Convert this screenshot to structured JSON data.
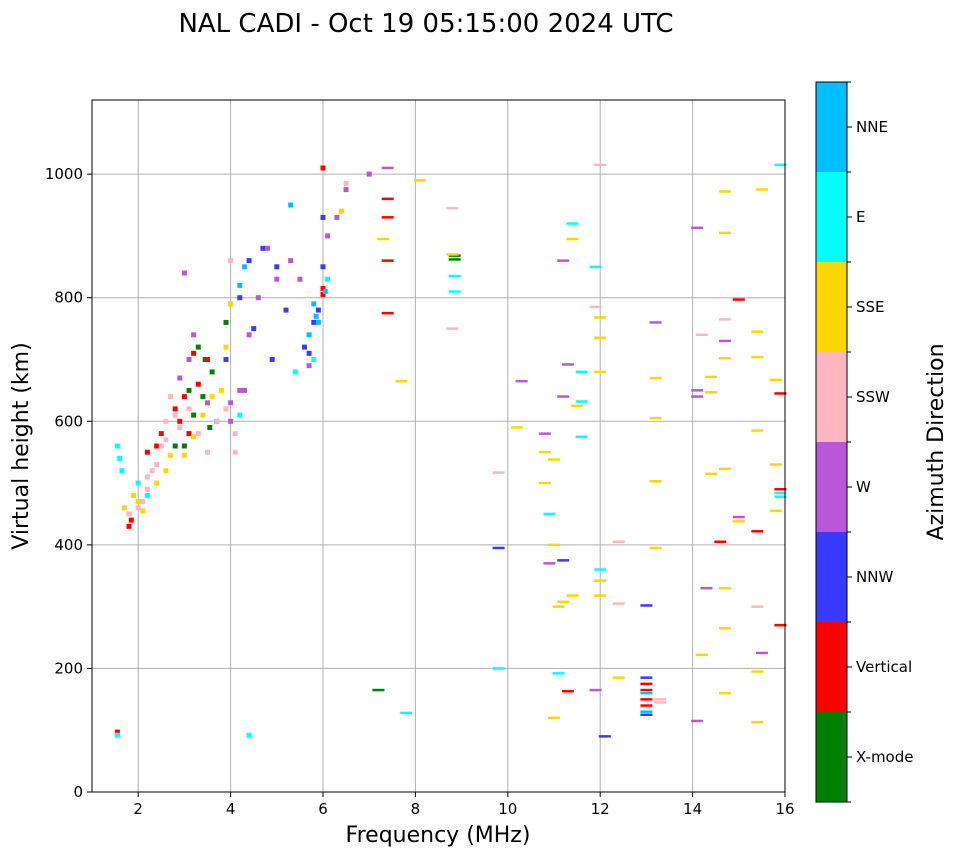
{
  "chart_data": {
    "type": "scatter",
    "title": "NAL CADI - Oct 19 05:15:00 2024 UTC",
    "xlabel": "Frequency (MHz)",
    "ylabel": "Virtual height (km)",
    "xlim": [
      1,
      16
    ],
    "ylim": [
      0,
      1120
    ],
    "xticks": [
      2,
      4,
      6,
      8,
      10,
      12,
      14,
      16
    ],
    "yticks": [
      0,
      200,
      400,
      600,
      800,
      1000
    ],
    "grid": true,
    "colorbar": {
      "label": "Azimuth Direction",
      "categories": [
        "X-mode",
        "Vertical",
        "NNW",
        "W",
        "SSW",
        "SSE",
        "E",
        "NNE"
      ],
      "colors": [
        "#008000",
        "#ff0000",
        "#3a3aff",
        "#b957d8",
        "#ffb6c1",
        "#ffd700",
        "#00ffff",
        "#00bfff"
      ]
    },
    "series": [
      {
        "name": "X-mode",
        "points": [
          [
            3.45,
            700
          ],
          [
            3.1,
            650
          ],
          [
            3.6,
            680
          ],
          [
            3.9,
            760
          ],
          [
            3.3,
            720
          ],
          [
            3.7,
            600
          ],
          [
            3.0,
            560
          ],
          [
            2.8,
            560
          ],
          [
            3.4,
            640
          ],
          [
            7.2,
            165
          ],
          [
            8.85,
            868
          ],
          [
            8.85,
            862
          ],
          [
            3.55,
            590
          ],
          [
            3.2,
            610
          ]
        ]
      },
      {
        "name": "Vertical",
        "points": [
          [
            1.55,
            97
          ],
          [
            1.8,
            430
          ],
          [
            1.85,
            440
          ],
          [
            2.2,
            550
          ],
          [
            2.4,
            560
          ],
          [
            2.5,
            580
          ],
          [
            2.8,
            620
          ],
          [
            3.0,
            640
          ],
          [
            3.2,
            710
          ],
          [
            3.3,
            660
          ],
          [
            3.5,
            700
          ],
          [
            6.0,
            815
          ],
          [
            6.0,
            805
          ],
          [
            6.0,
            1010
          ],
          [
            7.4,
            960
          ],
          [
            7.4,
            930
          ],
          [
            7.4,
            860
          ],
          [
            7.4,
            775
          ],
          [
            13.0,
            175
          ],
          [
            13.0,
            165
          ],
          [
            13.0,
            150
          ],
          [
            13.0,
            140
          ],
          [
            14.6,
            405
          ],
          [
            15.4,
            422
          ],
          [
            15.9,
            490
          ],
          [
            15.9,
            645
          ],
          [
            15.9,
            270
          ],
          [
            15.0,
            797
          ],
          [
            11.3,
            163
          ],
          [
            3.1,
            580
          ],
          [
            2.9,
            600
          ]
        ]
      },
      {
        "name": "NNW",
        "points": [
          [
            4.4,
            860
          ],
          [
            4.5,
            750
          ],
          [
            5.0,
            850
          ],
          [
            5.2,
            780
          ],
          [
            5.6,
            720
          ],
          [
            5.7,
            710
          ],
          [
            5.8,
            760
          ],
          [
            5.9,
            780
          ],
          [
            6.0,
            850
          ],
          [
            6.0,
            930
          ],
          [
            9.8,
            395
          ],
          [
            11.2,
            375
          ],
          [
            12.1,
            90
          ],
          [
            13.0,
            302
          ],
          [
            13.0,
            125
          ],
          [
            13.0,
            185
          ],
          [
            4.2,
            800
          ],
          [
            4.7,
            880
          ],
          [
            3.9,
            700
          ],
          [
            4.9,
            700
          ]
        ]
      },
      {
        "name": "W",
        "points": [
          [
            3.0,
            840
          ],
          [
            4.0,
            790
          ],
          [
            4.2,
            650
          ],
          [
            4.4,
            740
          ],
          [
            4.3,
            650
          ],
          [
            4.6,
            800
          ],
          [
            4.8,
            880
          ],
          [
            5.0,
            830
          ],
          [
            5.3,
            860
          ],
          [
            5.5,
            830
          ],
          [
            5.7,
            690
          ],
          [
            6.1,
            900
          ],
          [
            6.3,
            930
          ],
          [
            6.5,
            975
          ],
          [
            7.0,
            1000
          ],
          [
            7.4,
            1010
          ],
          [
            10.3,
            665
          ],
          [
            10.8,
            580
          ],
          [
            10.9,
            370
          ],
          [
            11.2,
            640
          ],
          [
            11.3,
            692
          ],
          [
            11.9,
            165
          ],
          [
            11.2,
            860
          ],
          [
            13.2,
            760
          ],
          [
            14.1,
            913
          ],
          [
            14.1,
            650
          ],
          [
            14.1,
            640
          ],
          [
            14.1,
            115
          ],
          [
            14.3,
            330
          ],
          [
            14.7,
            730
          ],
          [
            15.0,
            445
          ],
          [
            15.5,
            225
          ],
          [
            2.9,
            670
          ],
          [
            3.1,
            700
          ],
          [
            3.2,
            740
          ],
          [
            3.5,
            630
          ],
          [
            4.0,
            630
          ],
          [
            4.0,
            600
          ]
        ]
      },
      {
        "name": "SSW",
        "points": [
          [
            1.8,
            450
          ],
          [
            2.0,
            460
          ],
          [
            2.2,
            490
          ],
          [
            2.3,
            520
          ],
          [
            2.5,
            560
          ],
          [
            2.6,
            600
          ],
          [
            2.7,
            640
          ],
          [
            2.8,
            610
          ],
          [
            2.9,
            590
          ],
          [
            3.1,
            620
          ],
          [
            3.3,
            580
          ],
          [
            3.5,
            550
          ],
          [
            3.7,
            600
          ],
          [
            3.9,
            620
          ],
          [
            4.1,
            550
          ],
          [
            4.1,
            580
          ],
          [
            8.8,
            945
          ],
          [
            8.8,
            750
          ],
          [
            9.8,
            517
          ],
          [
            12.4,
            405
          ],
          [
            12.4,
            305
          ],
          [
            13.3,
            145
          ],
          [
            13.3,
            150
          ],
          [
            14.2,
            740
          ],
          [
            14.7,
            765
          ],
          [
            15.4,
            300
          ],
          [
            11.9,
            785
          ],
          [
            12.0,
            1015
          ],
          [
            6.5,
            985
          ],
          [
            4.0,
            860
          ],
          [
            2.1,
            470
          ],
          [
            2.4,
            530
          ],
          [
            2.6,
            570
          ],
          [
            2.2,
            510
          ]
        ]
      },
      {
        "name": "SSE",
        "points": [
          [
            1.7,
            460
          ],
          [
            1.9,
            480
          ],
          [
            2.0,
            470
          ],
          [
            2.1,
            455
          ],
          [
            2.4,
            500
          ],
          [
            2.6,
            520
          ],
          [
            2.7,
            545
          ],
          [
            3.0,
            545
          ],
          [
            3.2,
            575
          ],
          [
            3.4,
            610
          ],
          [
            3.6,
            640
          ],
          [
            3.8,
            650
          ],
          [
            3.9,
            720
          ],
          [
            4.0,
            790
          ],
          [
            7.3,
            895
          ],
          [
            7.7,
            665
          ],
          [
            8.1,
            990
          ],
          [
            8.8,
            870
          ],
          [
            10.2,
            590
          ],
          [
            10.8,
            550
          ],
          [
            11.0,
            538
          ],
          [
            11.1,
            300
          ],
          [
            11.2,
            308
          ],
          [
            11.4,
            318
          ],
          [
            11.4,
            895
          ],
          [
            11.5,
            625
          ],
          [
            12.0,
            735
          ],
          [
            12.0,
            768
          ],
          [
            12.0,
            680
          ],
          [
            12.0,
            342
          ],
          [
            12.0,
            318
          ],
          [
            12.4,
            185
          ],
          [
            13.2,
            670
          ],
          [
            13.2,
            605
          ],
          [
            13.2,
            503
          ],
          [
            13.2,
            395
          ],
          [
            14.2,
            222
          ],
          [
            14.4,
            672
          ],
          [
            14.4,
            647
          ],
          [
            14.4,
            515
          ],
          [
            14.7,
            972
          ],
          [
            14.7,
            905
          ],
          [
            14.7,
            702
          ],
          [
            14.7,
            523
          ],
          [
            14.7,
            330
          ],
          [
            14.7,
            265
          ],
          [
            14.7,
            160
          ],
          [
            15.0,
            438
          ],
          [
            15.4,
            745
          ],
          [
            15.4,
            704
          ],
          [
            15.4,
            585
          ],
          [
            15.4,
            195
          ],
          [
            15.4,
            113
          ],
          [
            15.5,
            975
          ],
          [
            15.8,
            667
          ],
          [
            15.8,
            530
          ],
          [
            15.8,
            455
          ],
          [
            11.0,
            400
          ],
          [
            11.0,
            120
          ],
          [
            10.8,
            500
          ],
          [
            6.4,
            940
          ]
        ]
      },
      {
        "name": "E",
        "points": [
          [
            1.55,
            560
          ],
          [
            1.6,
            540
          ],
          [
            1.65,
            520
          ],
          [
            1.55,
            92
          ],
          [
            4.4,
            92
          ],
          [
            4.2,
            610
          ],
          [
            5.4,
            680
          ],
          [
            5.8,
            700
          ],
          [
            6.1,
            830
          ],
          [
            7.8,
            128
          ],
          [
            8.85,
            835
          ],
          [
            8.85,
            810
          ],
          [
            9.8,
            200
          ],
          [
            10.9,
            450
          ],
          [
            11.1,
            192
          ],
          [
            11.4,
            920
          ],
          [
            11.6,
            680
          ],
          [
            11.6,
            575
          ],
          [
            11.6,
            632
          ],
          [
            11.9,
            850
          ],
          [
            12.0,
            360
          ],
          [
            15.9,
            1015
          ],
          [
            15.9,
            478
          ],
          [
            15.9,
            484
          ],
          [
            2.0,
            500
          ],
          [
            2.2,
            480
          ]
        ]
      },
      {
        "name": "NNE",
        "points": [
          [
            5.3,
            950
          ],
          [
            5.8,
            790
          ],
          [
            5.85,
            770
          ],
          [
            5.9,
            760
          ],
          [
            6.05,
            810
          ],
          [
            13.0,
            130
          ],
          [
            13.0,
            160
          ],
          [
            4.3,
            850
          ],
          [
            4.2,
            820
          ],
          [
            5.7,
            740
          ]
        ]
      }
    ]
  }
}
